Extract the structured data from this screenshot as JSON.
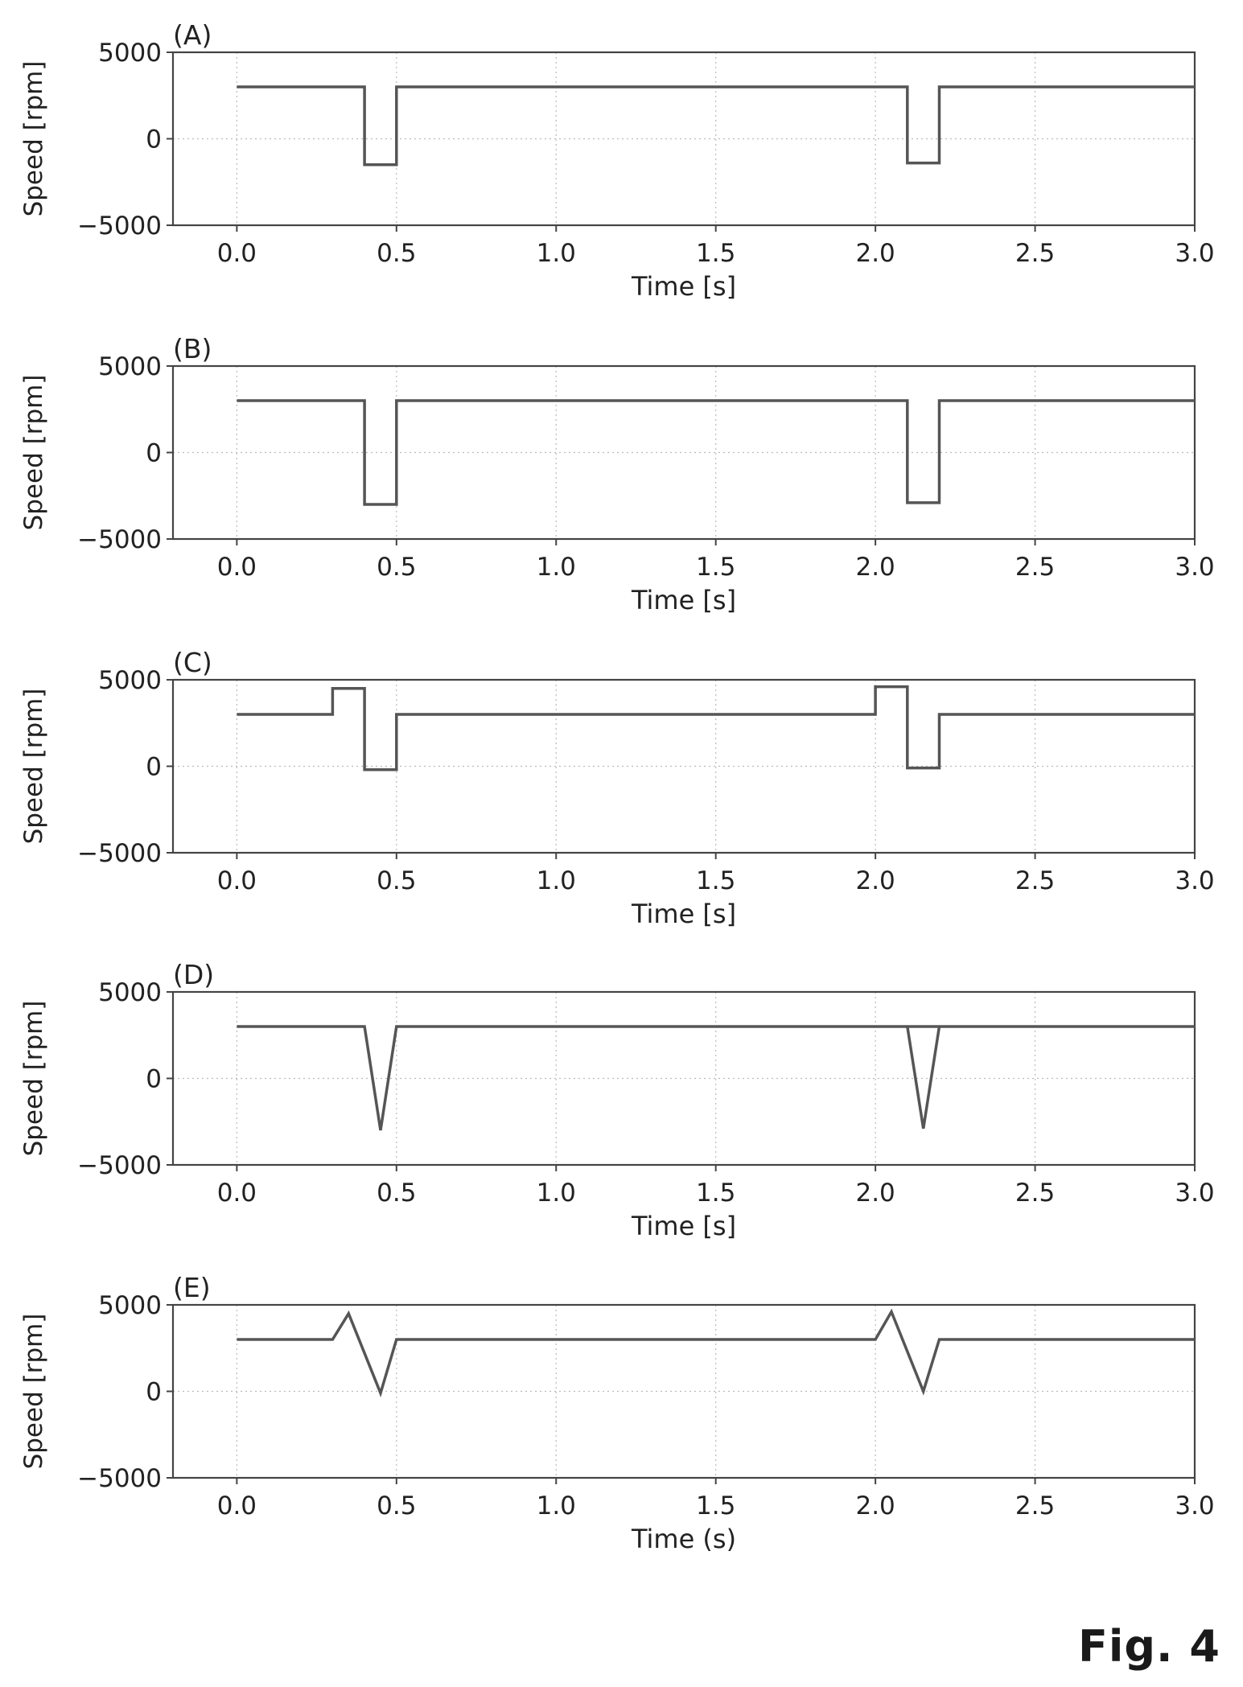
{
  "figure_label": "Fig. 4",
  "colors": {
    "line": "#555555",
    "frame": "#444444",
    "grid": "#bbbbbb",
    "text": "#222222"
  },
  "chart_data": [
    {
      "type": "line",
      "panel_label": "(A)",
      "xlabel": "Time [s]",
      "ylabel": "Speed [rpm]",
      "xlim": [
        -0.2,
        3.0
      ],
      "ylim": [
        -5000,
        5000
      ],
      "xticks": [
        0.0,
        0.5,
        1.0,
        1.5,
        2.0,
        2.5,
        3.0
      ],
      "xtick_labels": [
        "0.0",
        "0.5",
        "1.0",
        "1.5",
        "2.0",
        "2.5",
        "3.0"
      ],
      "yticks": [
        5000,
        0,
        -5000
      ],
      "ytick_labels": [
        "5000",
        "0",
        "−5000"
      ],
      "grid": true,
      "x": [
        0.0,
        0.4,
        0.4,
        0.5,
        0.5,
        2.1,
        2.1,
        2.2,
        2.2,
        3.0
      ],
      "y": [
        3000,
        3000,
        -1500,
        -1500,
        3000,
        3000,
        -1400,
        -1400,
        3000,
        3000
      ]
    },
    {
      "type": "line",
      "panel_label": "(B)",
      "xlabel": "Time [s]",
      "ylabel": "Speed [rpm]",
      "xlim": [
        -0.2,
        3.0
      ],
      "ylim": [
        -5000,
        5000
      ],
      "xticks": [
        0.0,
        0.5,
        1.0,
        1.5,
        2.0,
        2.5,
        3.0
      ],
      "xtick_labels": [
        "0.0",
        "0.5",
        "1.0",
        "1.5",
        "2.0",
        "2.5",
        "3.0"
      ],
      "yticks": [
        5000,
        0,
        -5000
      ],
      "ytick_labels": [
        "5000",
        "0",
        "−5000"
      ],
      "grid": true,
      "x": [
        0.0,
        0.4,
        0.4,
        0.5,
        0.5,
        2.1,
        2.1,
        2.2,
        2.2,
        3.0
      ],
      "y": [
        3000,
        3000,
        -3000,
        -3000,
        3000,
        3000,
        -2900,
        -2900,
        3000,
        3000
      ]
    },
    {
      "type": "line",
      "panel_label": "(C)",
      "xlabel": "Time [s]",
      "ylabel": "Speed [rpm]",
      "xlim": [
        -0.2,
        3.0
      ],
      "ylim": [
        -5000,
        5000
      ],
      "xticks": [
        0.0,
        0.5,
        1.0,
        1.5,
        2.0,
        2.5,
        3.0
      ],
      "xtick_labels": [
        "0.0",
        "0.5",
        "1.0",
        "1.5",
        "2.0",
        "2.5",
        "3.0"
      ],
      "yticks": [
        5000,
        0,
        -5000
      ],
      "ytick_labels": [
        "5000",
        "0",
        "−5000"
      ],
      "grid": true,
      "x": [
        0.0,
        0.3,
        0.3,
        0.4,
        0.4,
        0.5,
        0.5,
        2.0,
        2.0,
        2.1,
        2.1,
        2.2,
        2.2,
        3.0
      ],
      "y": [
        3000,
        3000,
        4500,
        4500,
        -200,
        -200,
        3000,
        3000,
        4600,
        4600,
        -100,
        -100,
        3000,
        3000
      ]
    },
    {
      "type": "line",
      "panel_label": "(D)",
      "xlabel": "Time [s]",
      "ylabel": "Speed [rpm]",
      "xlim": [
        -0.2,
        3.0
      ],
      "ylim": [
        -5000,
        5000
      ],
      "xticks": [
        0.0,
        0.5,
        1.0,
        1.5,
        2.0,
        2.5,
        3.0
      ],
      "xtick_labels": [
        "0.0",
        "0.5",
        "1.0",
        "1.5",
        "2.0",
        "2.5",
        "3.0"
      ],
      "yticks": [
        5000,
        0,
        -5000
      ],
      "ytick_labels": [
        "5000",
        "0",
        "−5000"
      ],
      "grid": true,
      "x": [
        0.0,
        0.4,
        0.45,
        0.5,
        3.0
      ],
      "y": [
        3000,
        3000,
        -3000,
        3000,
        3000
      ],
      "x2": [
        2.1,
        2.15,
        2.2
      ],
      "y2": [
        3000,
        -2900,
        3000
      ]
    },
    {
      "type": "line",
      "panel_label": "(E)",
      "xlabel": "Time (s)",
      "ylabel": "Speed [rpm]",
      "xlim": [
        -0.2,
        3.0
      ],
      "ylim": [
        -5000,
        5000
      ],
      "xticks": [
        0.0,
        0.5,
        1.0,
        1.5,
        2.0,
        2.5,
        3.0
      ],
      "xtick_labels": [
        "0.0",
        "0.5",
        "1.0",
        "1.5",
        "2.0",
        "2.5",
        "3.0"
      ],
      "yticks": [
        5000,
        0,
        -5000
      ],
      "ytick_labels": [
        "5000",
        "0",
        "−5000"
      ],
      "grid": true,
      "x": [
        0.0,
        0.3,
        0.35,
        0.45,
        0.5,
        2.0,
        2.05,
        2.15,
        2.2,
        3.0
      ],
      "y": [
        3000,
        3000,
        4500,
        -100,
        3000,
        3000,
        4600,
        0,
        3000,
        3000
      ]
    }
  ]
}
